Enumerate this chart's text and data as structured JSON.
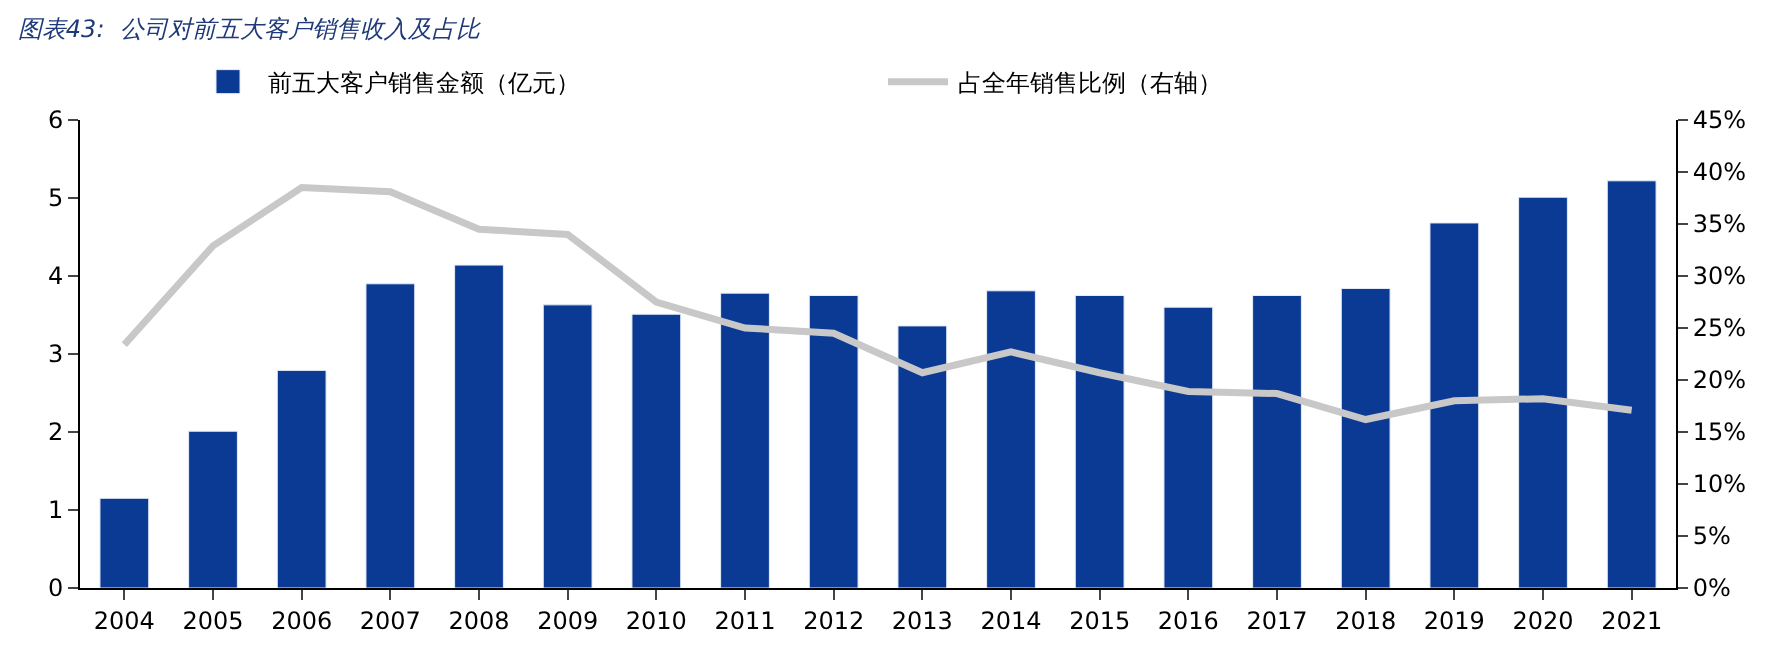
{
  "chart_data": {
    "type": "bar",
    "title": "图表43:  公司对前五大客户销售收入及占比",
    "categories": [
      "2004",
      "2005",
      "2006",
      "2007",
      "2008",
      "2009",
      "2010",
      "2011",
      "2012",
      "2013",
      "2014",
      "2015",
      "2016",
      "2017",
      "2018",
      "2019",
      "2020",
      "2021"
    ],
    "series": [
      {
        "name": "前五大客户销售金额（亿元）",
        "color": "#0a3a94",
        "values": [
          1.15,
          2.01,
          2.79,
          3.9,
          4.14,
          3.63,
          3.51,
          3.78,
          3.75,
          3.36,
          3.81,
          3.75,
          3.6,
          3.75,
          3.84,
          4.68,
          5.01,
          5.22
        ]
      },
      {
        "name": "占全年销售比例（右轴）",
        "type": "line",
        "axis": "y2",
        "color": "#c8c8c8",
        "values": [
          23.4,
          32.9,
          38.5,
          38.1,
          34.5,
          34.0,
          27.5,
          25.0,
          24.5,
          20.7,
          22.7,
          20.7,
          18.9,
          18.7,
          16.2,
          18.0,
          18.2,
          17.1
        ]
      }
    ],
    "ylim": [
      0,
      6
    ],
    "yticks": [
      0,
      1,
      2,
      3,
      4,
      5,
      6
    ],
    "y2lim": [
      0,
      45
    ],
    "y2ticks": [
      {
        "value": 0,
        "label": "0%"
      },
      {
        "value": 5,
        "label": "5%"
      },
      {
        "value": 10,
        "label": "10%"
      },
      {
        "value": 15,
        "label": "15%"
      },
      {
        "value": 20,
        "label": "20%"
      },
      {
        "value": 25,
        "label": "25%"
      },
      {
        "value": 30,
        "label": "30%"
      },
      {
        "value": 35,
        "label": "35%"
      },
      {
        "value": 40,
        "label": "40%"
      },
      {
        "value": 45,
        "label": "45%"
      }
    ],
    "legend": "top",
    "marker": "none",
    "line_style": "solid"
  }
}
